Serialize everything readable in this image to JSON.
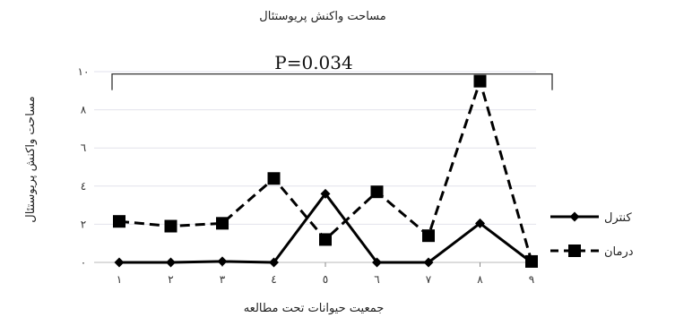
{
  "chart_data": {
    "type": "line",
    "title": "مساحت واکنش پریوستئال",
    "xlabel": "جمعیت حیوانات تحت مطالعه",
    "ylabel": "مساحت واکنش پریوستئال",
    "annotation": "P=0.034",
    "categories": [
      "۱",
      "۲",
      "۳",
      "٤",
      "٥",
      "٦",
      "۷",
      "۸",
      "۹"
    ],
    "y_tick_labels": [
      "۰",
      "۲",
      "٤",
      "٦",
      "۸",
      "۱۰"
    ],
    "y_ticks": [
      0,
      2,
      4,
      6,
      8,
      10
    ],
    "ylim": [
      0,
      10
    ],
    "grid": "horizontal",
    "legend_position": "right",
    "series": [
      {
        "name": "کنترل",
        "style": "solid",
        "marker": "diamond",
        "color": "#000000",
        "values": [
          0,
          0,
          0.05,
          0,
          3.6,
          0,
          0,
          2.05,
          0
        ]
      },
      {
        "name": "درمان",
        "style": "dashed",
        "marker": "square",
        "color": "#000000",
        "values": [
          2.15,
          1.9,
          2.05,
          4.4,
          1.2,
          3.7,
          1.4,
          9.5,
          0.05
        ]
      }
    ]
  }
}
